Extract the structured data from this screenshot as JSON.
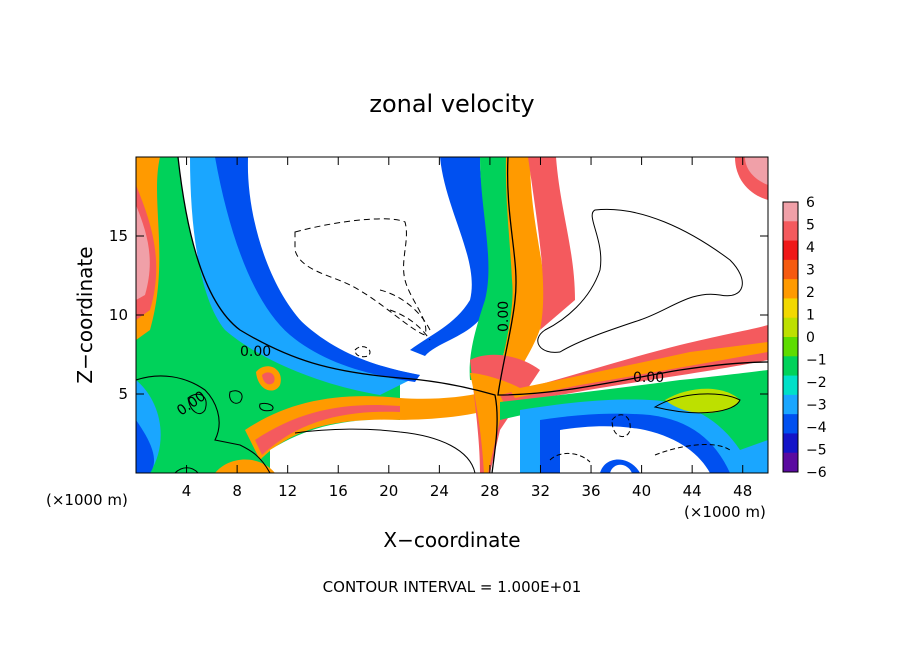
{
  "chart_data": {
    "type": "heatmap",
    "title": "zonal velocity",
    "xlabel": "X−coordinate",
    "ylabel": "Z−coordinate",
    "x_unit_left": "(×1000 m)",
    "x_unit_right": "(×1000 m)",
    "footer": "CONTOUR INTERVAL = 1.000E+01",
    "xlim": [
      0,
      50
    ],
    "ylim": [
      0,
      20
    ],
    "x_ticks": [
      4,
      8,
      12,
      16,
      20,
      24,
      28,
      32,
      36,
      40,
      44,
      48
    ],
    "y_ticks": [
      5,
      10,
      15
    ],
    "contour_labels": [
      "0.00",
      "0.00",
      "0.00",
      "0.00"
    ],
    "colorbar": {
      "range": [
        -6,
        6
      ],
      "ticks": [
        "6",
        "5",
        "4",
        "3",
        "2",
        "1",
        "0",
        "−1",
        "−2",
        "−3",
        "−4",
        "−5",
        "−6"
      ],
      "colors": [
        "#f0a0a8",
        "#f45a5e",
        "#f01818",
        "#f55a10",
        "#ff9a00",
        "#f2d800",
        "#bde000",
        "#5edc00",
        "#00d25a",
        "#00e0c8",
        "#1aa6ff",
        "#0050f0",
        "#1414c8",
        "#5a0aa0"
      ]
    }
  }
}
